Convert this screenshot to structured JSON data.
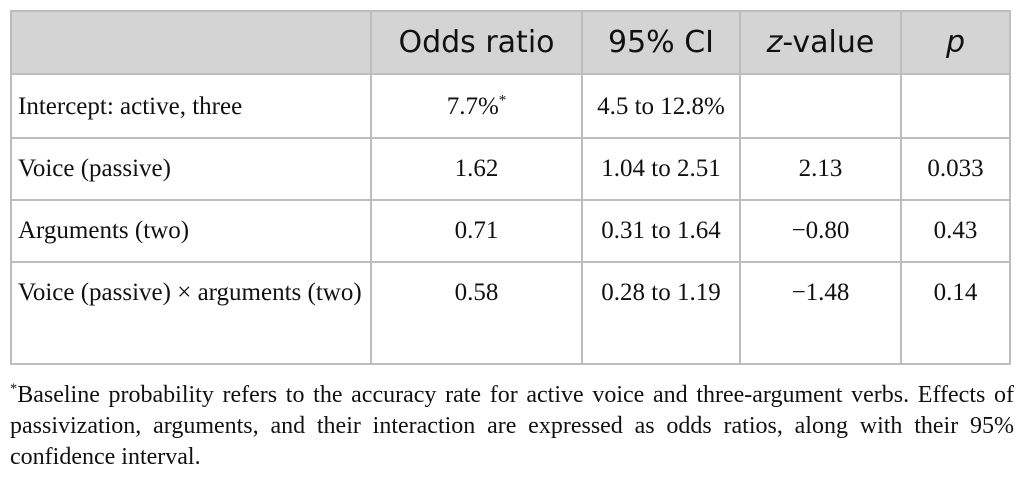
{
  "table": {
    "headers": [
      "",
      "Odds ratio",
      "95% CI",
      "z-value",
      "p"
    ],
    "rows": [
      {
        "label": "Intercept: active, three",
        "odds_ratio": "7.7%",
        "odds_ratio_mark": "*",
        "ci": "4.5 to 12.8%",
        "z": "",
        "p": ""
      },
      {
        "label": "Voice (passive)",
        "odds_ratio": "1.62",
        "odds_ratio_mark": "",
        "ci": "1.04 to 2.51",
        "z": "2.13",
        "p": "0.033"
      },
      {
        "label": "Arguments (two)",
        "odds_ratio": "0.71",
        "odds_ratio_mark": "",
        "ci": "0.31 to 1.64",
        "z": "−0.80",
        "p": "0.43"
      },
      {
        "label": "Voice (passive) × arguments (two)",
        "odds_ratio": "0.58",
        "odds_ratio_mark": "",
        "ci": "0.28 to 1.19",
        "z": "−1.48",
        "p": "0.14"
      }
    ]
  },
  "footnote": {
    "mark": "*",
    "text": "Baseline probability refers to the accuracy rate for active voice and three-argument verbs. Effects of passivization, arguments, and their interaction are expressed as odds ratios, along with their 95% confidence interval."
  }
}
